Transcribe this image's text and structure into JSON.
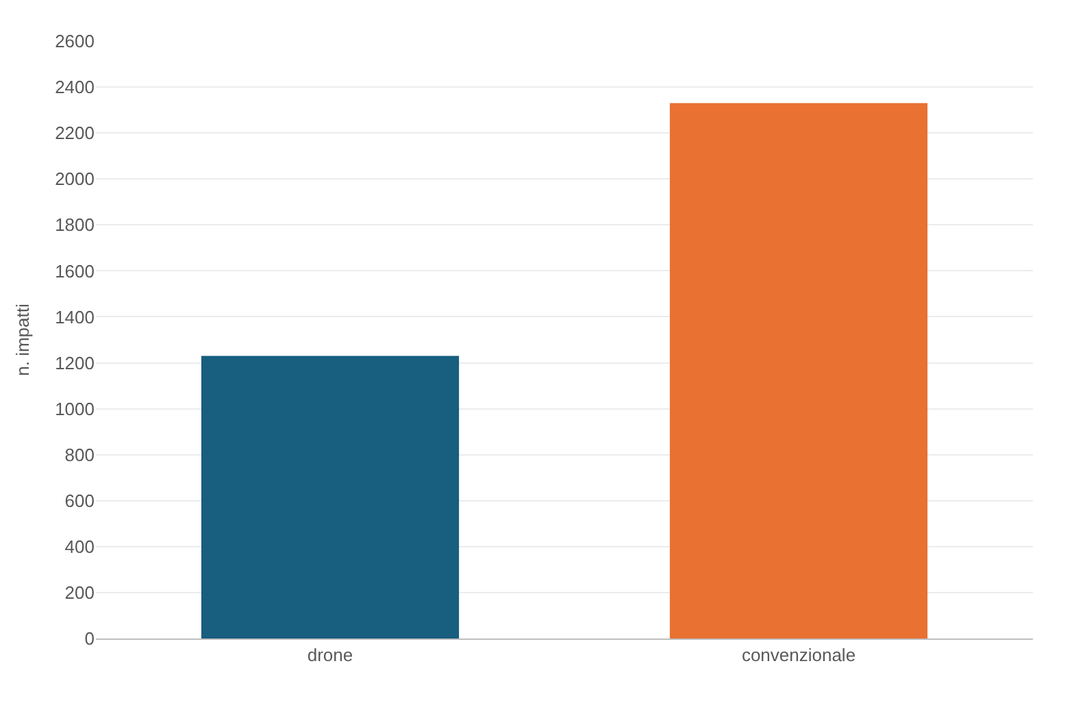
{
  "chart_data": {
    "type": "bar",
    "ylabel": "n. impatti",
    "categories": [
      "drone",
      "convenzionale"
    ],
    "values": [
      1230,
      2330
    ],
    "colors": [
      "#175e7f",
      "#e97132"
    ],
    "ylim": [
      0,
      2600
    ],
    "yticks": [
      0,
      200,
      400,
      600,
      800,
      1000,
      1200,
      1400,
      1600,
      1800,
      2000,
      2200,
      2400,
      2600
    ],
    "grid": "y"
  }
}
